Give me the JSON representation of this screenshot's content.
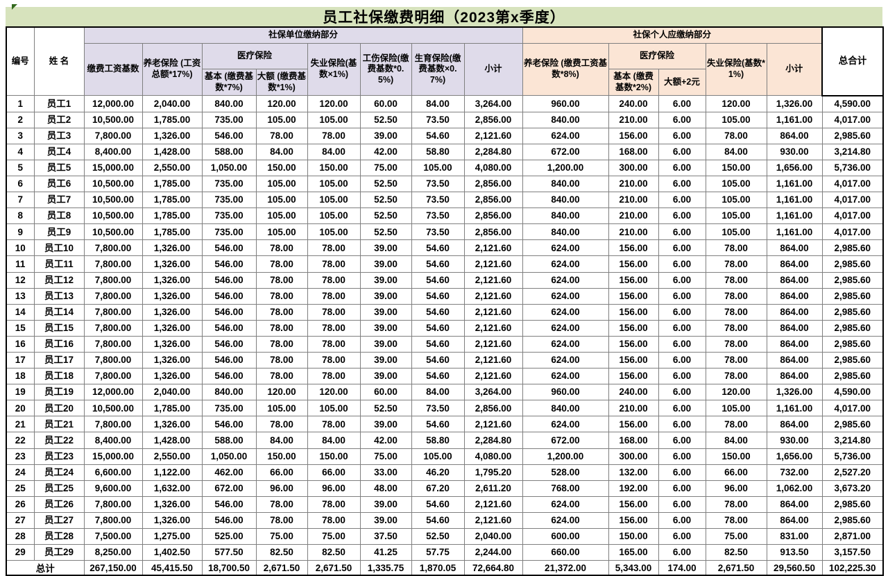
{
  "app": {
    "title": "员工社保缴费明细（2023第x季度）"
  },
  "colors": {
    "title_fill": "#D7E3BD",
    "unit_section_fill": "#DFDBEA",
    "personal_section_fill": "#FBE5D5",
    "grid_line": "#7f7f7f",
    "outer_border": "#000000"
  },
  "table": {
    "group_headers": {
      "unit": "社保单位缴纳部分",
      "personal": "社保个人应缴纳部分",
      "grand_total": "总合计"
    },
    "columns": {
      "no": "编号",
      "name": "姓 名",
      "pay_base": "缴费工资基数",
      "unit_pension": "养老保险 (工资总额*17%)",
      "unit_medical_group": "医疗保险",
      "unit_medical_basic": "基本 (缴费基数*7%)",
      "unit_medical_large": "大额 (缴费基数*1%)",
      "unit_unemployment": "失业保险(基数×1%)",
      "unit_injury": "工伤保险(缴费基数*0.5%)",
      "unit_maternity": "生育保险(缴费基数×0.7%)",
      "unit_subtotal": "小计",
      "personal_pension": "养老保险 (缴费工资基数*8%)",
      "personal_medical_group": "医疗保险",
      "personal_medical_basic": "基本 (缴费基数*2%)",
      "personal_medical_large": "大额+2元",
      "personal_unemployment": "失业保险(基数*1%)",
      "personal_subtotal": "小计"
    },
    "rows": [
      [
        "1",
        "员工1",
        "12,000.00",
        "2,040.00",
        "840.00",
        "120.00",
        "120.00",
        "60.00",
        "84.00",
        "3,264.00",
        "960.00",
        "240.00",
        "6.00",
        "120.00",
        "1,326.00",
        "4,590.00"
      ],
      [
        "2",
        "员工2",
        "10,500.00",
        "1,785.00",
        "735.00",
        "105.00",
        "105.00",
        "52.50",
        "73.50",
        "2,856.00",
        "840.00",
        "210.00",
        "6.00",
        "105.00",
        "1,161.00",
        "4,017.00"
      ],
      [
        "3",
        "员工3",
        "7,800.00",
        "1,326.00",
        "546.00",
        "78.00",
        "78.00",
        "39.00",
        "54.60",
        "2,121.60",
        "624.00",
        "156.00",
        "6.00",
        "78.00",
        "864.00",
        "2,985.60"
      ],
      [
        "4",
        "员工4",
        "8,400.00",
        "1,428.00",
        "588.00",
        "84.00",
        "84.00",
        "42.00",
        "58.80",
        "2,284.80",
        "672.00",
        "168.00",
        "6.00",
        "84.00",
        "930.00",
        "3,214.80"
      ],
      [
        "5",
        "员工5",
        "15,000.00",
        "2,550.00",
        "1,050.00",
        "150.00",
        "150.00",
        "75.00",
        "105.00",
        "4,080.00",
        "1,200.00",
        "300.00",
        "6.00",
        "150.00",
        "1,656.00",
        "5,736.00"
      ],
      [
        "6",
        "员工6",
        "10,500.00",
        "1,785.00",
        "735.00",
        "105.00",
        "105.00",
        "52.50",
        "73.50",
        "2,856.00",
        "840.00",
        "210.00",
        "6.00",
        "105.00",
        "1,161.00",
        "4,017.00"
      ],
      [
        "7",
        "员工7",
        "10,500.00",
        "1,785.00",
        "735.00",
        "105.00",
        "105.00",
        "52.50",
        "73.50",
        "2,856.00",
        "840.00",
        "210.00",
        "6.00",
        "105.00",
        "1,161.00",
        "4,017.00"
      ],
      [
        "8",
        "员工8",
        "10,500.00",
        "1,785.00",
        "735.00",
        "105.00",
        "105.00",
        "52.50",
        "73.50",
        "2,856.00",
        "840.00",
        "210.00",
        "6.00",
        "105.00",
        "1,161.00",
        "4,017.00"
      ],
      [
        "9",
        "员工9",
        "10,500.00",
        "1,785.00",
        "735.00",
        "105.00",
        "105.00",
        "52.50",
        "73.50",
        "2,856.00",
        "840.00",
        "210.00",
        "6.00",
        "105.00",
        "1,161.00",
        "4,017.00"
      ],
      [
        "10",
        "员工10",
        "7,800.00",
        "1,326.00",
        "546.00",
        "78.00",
        "78.00",
        "39.00",
        "54.60",
        "2,121.60",
        "624.00",
        "156.00",
        "6.00",
        "78.00",
        "864.00",
        "2,985.60"
      ],
      [
        "11",
        "员工11",
        "7,800.00",
        "1,326.00",
        "546.00",
        "78.00",
        "78.00",
        "39.00",
        "54.60",
        "2,121.60",
        "624.00",
        "156.00",
        "6.00",
        "78.00",
        "864.00",
        "2,985.60"
      ],
      [
        "12",
        "员工12",
        "7,800.00",
        "1,326.00",
        "546.00",
        "78.00",
        "78.00",
        "39.00",
        "54.60",
        "2,121.60",
        "624.00",
        "156.00",
        "6.00",
        "78.00",
        "864.00",
        "2,985.60"
      ],
      [
        "13",
        "员工13",
        "7,800.00",
        "1,326.00",
        "546.00",
        "78.00",
        "78.00",
        "39.00",
        "54.60",
        "2,121.60",
        "624.00",
        "156.00",
        "6.00",
        "78.00",
        "864.00",
        "2,985.60"
      ],
      [
        "14",
        "员工14",
        "7,800.00",
        "1,326.00",
        "546.00",
        "78.00",
        "78.00",
        "39.00",
        "54.60",
        "2,121.60",
        "624.00",
        "156.00",
        "6.00",
        "78.00",
        "864.00",
        "2,985.60"
      ],
      [
        "15",
        "员工15",
        "7,800.00",
        "1,326.00",
        "546.00",
        "78.00",
        "78.00",
        "39.00",
        "54.60",
        "2,121.60",
        "624.00",
        "156.00",
        "6.00",
        "78.00",
        "864.00",
        "2,985.60"
      ],
      [
        "16",
        "员工16",
        "7,800.00",
        "1,326.00",
        "546.00",
        "78.00",
        "78.00",
        "39.00",
        "54.60",
        "2,121.60",
        "624.00",
        "156.00",
        "6.00",
        "78.00",
        "864.00",
        "2,985.60"
      ],
      [
        "17",
        "员工17",
        "7,800.00",
        "1,326.00",
        "546.00",
        "78.00",
        "78.00",
        "39.00",
        "54.60",
        "2,121.60",
        "624.00",
        "156.00",
        "6.00",
        "78.00",
        "864.00",
        "2,985.60"
      ],
      [
        "18",
        "员工18",
        "7,800.00",
        "1,326.00",
        "546.00",
        "78.00",
        "78.00",
        "39.00",
        "54.60",
        "2,121.60",
        "624.00",
        "156.00",
        "6.00",
        "78.00",
        "864.00",
        "2,985.60"
      ],
      [
        "19",
        "员工19",
        "12,000.00",
        "2,040.00",
        "840.00",
        "120.00",
        "120.00",
        "60.00",
        "84.00",
        "3,264.00",
        "960.00",
        "240.00",
        "6.00",
        "120.00",
        "1,326.00",
        "4,590.00"
      ],
      [
        "20",
        "员工20",
        "10,500.00",
        "1,785.00",
        "735.00",
        "105.00",
        "105.00",
        "52.50",
        "73.50",
        "2,856.00",
        "840.00",
        "210.00",
        "6.00",
        "105.00",
        "1,161.00",
        "4,017.00"
      ],
      [
        "21",
        "员工21",
        "7,800.00",
        "1,326.00",
        "546.00",
        "78.00",
        "78.00",
        "39.00",
        "54.60",
        "2,121.60",
        "624.00",
        "156.00",
        "6.00",
        "78.00",
        "864.00",
        "2,985.60"
      ],
      [
        "22",
        "员工22",
        "8,400.00",
        "1,428.00",
        "588.00",
        "84.00",
        "84.00",
        "42.00",
        "58.80",
        "2,284.80",
        "672.00",
        "168.00",
        "6.00",
        "84.00",
        "930.00",
        "3,214.80"
      ],
      [
        "23",
        "员工23",
        "15,000.00",
        "2,550.00",
        "1,050.00",
        "150.00",
        "150.00",
        "75.00",
        "105.00",
        "4,080.00",
        "1,200.00",
        "300.00",
        "6.00",
        "150.00",
        "1,656.00",
        "5,736.00"
      ],
      [
        "24",
        "员工24",
        "6,600.00",
        "1,122.00",
        "462.00",
        "66.00",
        "66.00",
        "33.00",
        "46.20",
        "1,795.20",
        "528.00",
        "132.00",
        "6.00",
        "66.00",
        "732.00",
        "2,527.20"
      ],
      [
        "25",
        "员工25",
        "9,600.00",
        "1,632.00",
        "672.00",
        "96.00",
        "96.00",
        "48.00",
        "67.20",
        "2,611.20",
        "768.00",
        "192.00",
        "6.00",
        "96.00",
        "1,062.00",
        "3,673.20"
      ],
      [
        "26",
        "员工26",
        "7,800.00",
        "1,326.00",
        "546.00",
        "78.00",
        "78.00",
        "39.00",
        "54.60",
        "2,121.60",
        "624.00",
        "156.00",
        "6.00",
        "78.00",
        "864.00",
        "2,985.60"
      ],
      [
        "27",
        "员工27",
        "7,800.00",
        "1,326.00",
        "546.00",
        "78.00",
        "78.00",
        "39.00",
        "54.60",
        "2,121.60",
        "624.00",
        "156.00",
        "6.00",
        "78.00",
        "864.00",
        "2,985.60"
      ],
      [
        "28",
        "员工28",
        "7,500.00",
        "1,275.00",
        "525.00",
        "75.00",
        "75.00",
        "37.50",
        "52.50",
        "2,040.00",
        "600.00",
        "150.00",
        "6.00",
        "75.00",
        "831.00",
        "2,871.00"
      ],
      [
        "29",
        "员工29",
        "8,250.00",
        "1,402.50",
        "577.50",
        "82.50",
        "82.50",
        "41.25",
        "57.75",
        "2,244.00",
        "660.00",
        "165.00",
        "6.00",
        "82.50",
        "913.50",
        "3,157.50"
      ]
    ],
    "total_row": [
      "总计",
      "267,150.00",
      "45,415.50",
      "18,700.50",
      "2,671.50",
      "2,671.50",
      "1,335.75",
      "1,870.05",
      "72,664.80",
      "21,372.00",
      "5,343.00",
      "174.00",
      "2,671.50",
      "29,560.50",
      "102,225.30"
    ]
  }
}
